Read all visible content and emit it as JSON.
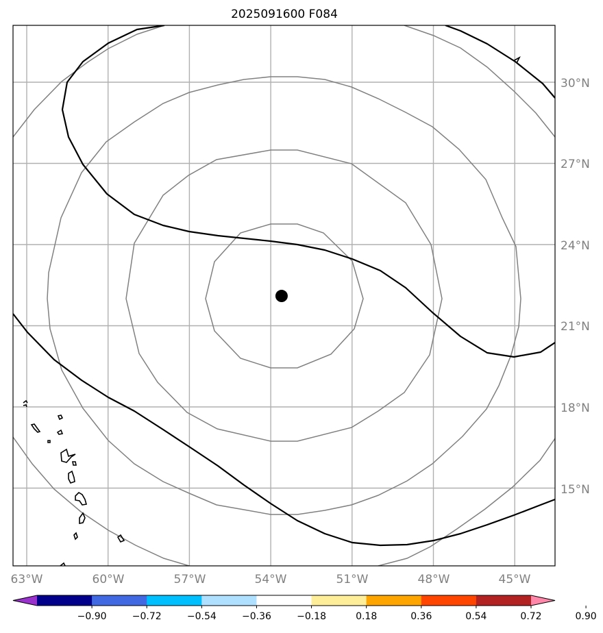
{
  "title": "2025091600 F084",
  "lon_labels": [
    "63°W",
    "60°W",
    "57°W",
    "54°W",
    "51°W",
    "48°W",
    "45°W"
  ],
  "lat_labels": [
    "30°N",
    "27°N",
    "24°N",
    "21°N",
    "18°N",
    "15°N"
  ],
  "storm_center": {
    "lon": -53.6,
    "lat": 22.1
  },
  "colorbar": {
    "ticks": [
      "−0.90",
      "−0.72",
      "−0.54",
      "−0.36",
      "−0.18",
      "0.18",
      "0.36",
      "0.54",
      "0.72",
      "0.90"
    ],
    "colors": [
      "#9932cc",
      "#00008b",
      "#4169e1",
      "#00bfff",
      "#b0e0ff",
      "#ffffff",
      "#ffee99",
      "#ffa500",
      "#ff4500",
      "#b22222",
      "#ff88aa"
    ]
  }
}
